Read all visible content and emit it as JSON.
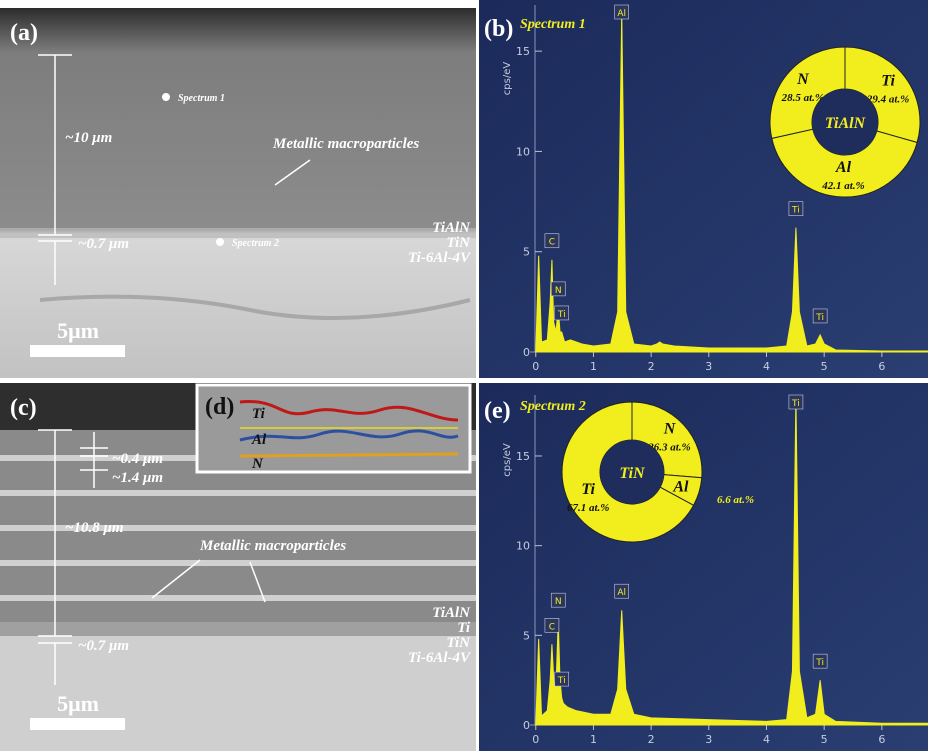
{
  "panels": {
    "a": {
      "label": "(a)",
      "spectrum_1": "Spectrum 1",
      "spectrum_2": "Spectrum 2",
      "thickness_top": "~10 μm",
      "thickness_bottom": "~0.7 μm",
      "annotation": "Metallic macroparticles",
      "layers": [
        "TiAlN",
        "TiN",
        "Ti-6Al-4V"
      ],
      "scale_bar": "5μm"
    },
    "c": {
      "label": "(c)",
      "thin_1": "~0.4 μm",
      "thin_2": "~1.4 μm",
      "thickness_top": "~10.8 μm",
      "thickness_bottom": "~0.7 μm",
      "annotation": "Metallic macroparticles",
      "layers": [
        "TiAlN",
        "Ti",
        "TiN",
        "Ti-6Al-4V"
      ],
      "scale_bar": "5μm"
    },
    "d": {
      "label": "(d)",
      "lines": [
        "Ti",
        "Al",
        "N"
      ]
    }
  },
  "chart_data": [
    {
      "type": "area",
      "panel_label": "(b)",
      "title": "Spectrum 1",
      "ylabel": "cps/eV",
      "color": "#f2ee1e",
      "x": [
        0,
        0.05,
        0.1,
        0.2,
        0.25,
        0.28,
        0.31,
        0.35,
        0.39,
        0.42,
        0.45,
        0.5,
        0.6,
        0.8,
        1.0,
        1.3,
        1.42,
        1.49,
        1.56,
        1.7,
        2.0,
        2.1,
        2.15,
        2.2,
        2.4,
        3.0,
        4.0,
        4.35,
        4.45,
        4.51,
        4.57,
        4.7,
        4.85,
        4.93,
        5.0,
        5.2,
        6.0,
        6.8
      ],
      "values": [
        0,
        4.8,
        0.5,
        0.6,
        2.5,
        4.6,
        1.5,
        1.0,
        2.2,
        1.0,
        1.0,
        0.5,
        0.6,
        0.4,
        0.3,
        0.4,
        2,
        17,
        2,
        0.4,
        0.3,
        0.4,
        0.5,
        0.4,
        0.3,
        0.2,
        0.2,
        0.3,
        2,
        6.2,
        2,
        0.3,
        0.4,
        0.85,
        0.4,
        0.1,
        0.05,
        0.05
      ],
      "peak_labels": [
        "C",
        "N",
        "Ti",
        "Al",
        "Ti",
        "Ti"
      ],
      "peak_x": [
        0.28,
        0.39,
        0.45,
        1.49,
        4.51,
        4.93
      ],
      "xlim": [
        -0.1,
        6.8
      ],
      "xticks": [
        0,
        1,
        2,
        3,
        4,
        5,
        6
      ],
      "ylim": [
        0,
        17.3
      ],
      "yticks": [
        0,
        5,
        10,
        15
      ]
    },
    {
      "type": "pie",
      "center_label": "TiAlN",
      "categories": [
        "Ti",
        "Al",
        "N"
      ],
      "values": [
        29.4,
        42.1,
        28.5
      ],
      "value_labels": [
        "29.4 at.%",
        "42.1 at.%",
        "28.5 at.%"
      ],
      "color": "#f2ee1e"
    },
    {
      "type": "area",
      "panel_label": "(e)",
      "title": "Spectrum 2",
      "ylabel": "cps/eV",
      "color": "#f2ee1e",
      "x": [
        0,
        0.05,
        0.1,
        0.2,
        0.25,
        0.28,
        0.32,
        0.36,
        0.39,
        0.42,
        0.45,
        0.48,
        0.55,
        0.7,
        1.0,
        1.3,
        1.42,
        1.49,
        1.56,
        1.7,
        2.0,
        3.0,
        4.0,
        4.35,
        4.45,
        4.51,
        4.57,
        4.7,
        4.85,
        4.93,
        5.0,
        5.2,
        6.0,
        6.8
      ],
      "values": [
        0,
        4.8,
        0.5,
        0.8,
        2.5,
        4.5,
        2,
        3,
        5.9,
        2.5,
        1.5,
        1.2,
        1.0,
        0.8,
        0.6,
        0.6,
        2,
        6.4,
        2,
        0.6,
        0.4,
        0.3,
        0.2,
        0.3,
        3,
        18.4,
        3,
        0.4,
        0.6,
        2.5,
        0.6,
        0.2,
        0.1,
        0.1
      ],
      "peak_labels": [
        "C",
        "N",
        "Ti",
        "Al",
        "Ti",
        "Ti"
      ],
      "peak_x": [
        0.28,
        0.39,
        0.45,
        1.49,
        4.51,
        4.93
      ],
      "xlim": [
        -0.1,
        6.8
      ],
      "xticks": [
        0,
        1,
        2,
        3,
        4,
        5,
        6
      ],
      "ylim": [
        0,
        18.4
      ],
      "yticks": [
        0,
        5,
        10,
        15
      ]
    },
    {
      "type": "pie",
      "center_label": "TiN",
      "categories": [
        "N",
        "Al",
        "Ti"
      ],
      "values": [
        26.3,
        6.6,
        67.1
      ],
      "value_labels": [
        "26.3 at.%",
        "6.6 at.%",
        "67.1 at.%"
      ],
      "color": "#f2ee1e"
    }
  ]
}
